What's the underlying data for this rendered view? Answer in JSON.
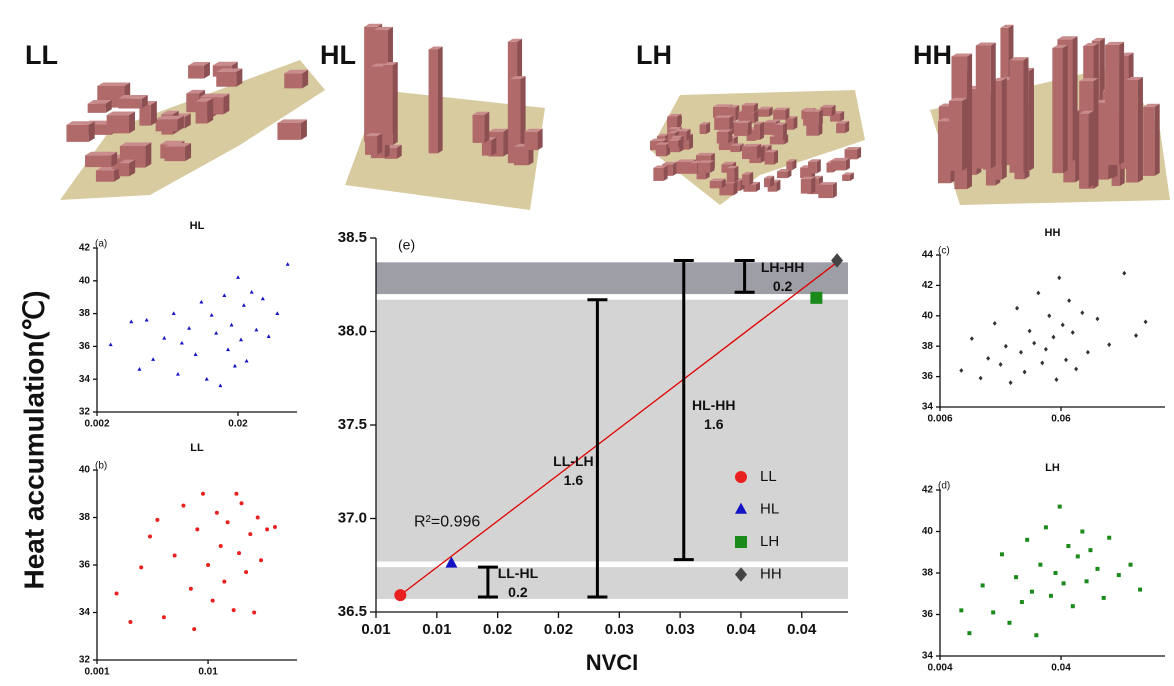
{
  "building_labels": [
    "LL",
    "HL",
    "LH",
    "HH"
  ],
  "chart_data": [
    {
      "type": "scatter",
      "panel_label": "(e)",
      "xlabel": "NVCI",
      "ylabel": "Heat accumulation(℃)",
      "xlim": [
        0.005,
        0.0438
      ],
      "ylim": [
        36.5,
        38.5
      ],
      "xticks": [
        {
          "value": 0.005,
          "label": "0.01"
        },
        {
          "value": 0.01,
          "label": "0.01"
        },
        {
          "value": 0.015,
          "label": "0.02"
        },
        {
          "value": 0.02,
          "label": "0.02"
        },
        {
          "value": 0.025,
          "label": "0.03"
        },
        {
          "value": 0.03,
          "label": "0.03"
        },
        {
          "value": 0.035,
          "label": "0.04"
        },
        {
          "value": 0.04,
          "label": "0.04"
        }
      ],
      "yticks": [
        36.5,
        {
          "value": 37,
          "label": "37.0"
        },
        37.5,
        {
          "value": 38,
          "label": "38.0"
        },
        38.5
      ],
      "bands": [
        {
          "color": "#d4d4d4",
          "range": [
            36.57,
            36.74
          ]
        },
        {
          "color": "#d4d4d4",
          "range": [
            36.77,
            38.17
          ]
        },
        {
          "color": "#9e9ea6",
          "range": [
            38.2,
            38.37
          ]
        }
      ],
      "series": [
        {
          "name": "LL",
          "color": "#e8201f",
          "marker": "circle",
          "x": [
            0.007
          ],
          "values": [
            36.59
          ]
        },
        {
          "name": "HL",
          "color": "#1414c4",
          "marker": "triangle",
          "x": [
            0.0112
          ],
          "values": [
            36.76
          ]
        },
        {
          "name": "LH",
          "color": "#1a8a1a",
          "marker": "square",
          "x": [
            0.0412
          ],
          "values": [
            38.18
          ]
        },
        {
          "name": "HH",
          "color": "#444444",
          "marker": "diamond",
          "x": [
            0.0429
          ],
          "values": [
            38.38
          ]
        }
      ],
      "fit": {
        "color": "#e00000",
        "x": [
          0.007,
          0.0429
        ],
        "values": [
          36.59,
          38.37
        ]
      },
      "intervals": [
        {
          "label": "LL-HL",
          "diff": 0.2,
          "x": 0.0142,
          "low": 36.58,
          "high": 36.74
        },
        {
          "label": "LL-LH",
          "diff": 1.6,
          "x": 0.0232,
          "low": 36.58,
          "high": 38.17
        },
        {
          "label": "HL-HH",
          "diff": 1.6,
          "x": 0.0303,
          "low": 36.78,
          "high": 38.38
        },
        {
          "label": "LH-HH",
          "diff": 0.2,
          "x": 0.0353,
          "low": 38.21,
          "high": 38.38
        }
      ],
      "annotation": "R²=0.996"
    },
    {
      "type": "scatter",
      "panel_label": "(a)",
      "title": "HL",
      "xscale": "log",
      "xlim": [
        0.002,
        0.0524
      ],
      "ylim": [
        32,
        42
      ],
      "xticks": [
        0.002,
        0.02
      ],
      "yticks": [
        32,
        34,
        36,
        38,
        40,
        42
      ],
      "series": [
        {
          "color": "#1414c4",
          "marker": "triangle",
          "x": [
            0.0025,
            0.0035,
            0.004,
            0.0045,
            0.005,
            0.006,
            0.007,
            0.0075,
            0.008,
            0.009,
            0.01,
            0.011,
            0.012,
            0.013,
            0.014,
            0.015,
            0.016,
            0.017,
            0.018,
            0.019,
            0.02,
            0.021,
            0.022,
            0.023,
            0.025,
            0.027,
            0.03,
            0.033,
            0.038,
            0.045
          ],
          "values": [
            36.1,
            37.5,
            34.6,
            37.6,
            35.2,
            36.5,
            38.0,
            34.3,
            36.2,
            37.1,
            35.5,
            38.7,
            34.0,
            37.9,
            36.8,
            33.6,
            39.1,
            35.8,
            37.3,
            34.8,
            40.2,
            36.4,
            38.5,
            35.1,
            39.3,
            37.0,
            38.9,
            36.6,
            38.0,
            41.0
          ]
        }
      ]
    },
    {
      "type": "scatter",
      "panel_label": "(b)",
      "title": "LL",
      "xscale": "log",
      "xlim": [
        0.001,
        0.0632
      ],
      "ylim": [
        32,
        40
      ],
      "xticks": [
        0.001,
        0.01
      ],
      "yticks": [
        32,
        34,
        36,
        38,
        40
      ],
      "series": [
        {
          "color": "#e8201f",
          "marker": "circle",
          "x": [
            0.0015,
            0.002,
            0.0025,
            0.003,
            0.0035,
            0.004,
            0.005,
            0.006,
            0.007,
            0.0075,
            0.008,
            0.009,
            0.01,
            0.011,
            0.012,
            0.013,
            0.014,
            0.015,
            0.017,
            0.018,
            0.019,
            0.02,
            0.022,
            0.024,
            0.026,
            0.028,
            0.03,
            0.034,
            0.04
          ],
          "values": [
            34.8,
            33.6,
            35.9,
            37.2,
            37.9,
            33.8,
            36.4,
            38.5,
            35.0,
            33.3,
            37.5,
            39.0,
            36.0,
            34.5,
            38.2,
            36.8,
            35.3,
            37.8,
            34.1,
            39.0,
            36.5,
            38.6,
            35.7,
            37.3,
            34.0,
            38.0,
            36.2,
            37.5,
            37.6
          ]
        }
      ]
    },
    {
      "type": "scatter",
      "panel_label": "(c)",
      "title": "HH",
      "xscale": "log",
      "xlim": [
        0.006,
        0.434
      ],
      "ylim": [
        34,
        44
      ],
      "xticks": [
        0.006,
        0.06
      ],
      "yticks": [
        34,
        36,
        38,
        40,
        42,
        44
      ],
      "series": [
        {
          "color": "#333333",
          "marker": "diamond",
          "x": [
            0.009,
            0.011,
            0.013,
            0.015,
            0.017,
            0.019,
            0.021,
            0.023,
            0.026,
            0.028,
            0.03,
            0.033,
            0.036,
            0.039,
            0.042,
            0.045,
            0.048,
            0.052,
            0.055,
            0.058,
            0.062,
            0.066,
            0.07,
            0.075,
            0.08,
            0.09,
            0.1,
            0.12,
            0.15,
            0.2,
            0.25,
            0.3
          ],
          "values": [
            36.4,
            38.5,
            35.9,
            37.2,
            39.5,
            36.8,
            38.0,
            35.6,
            40.5,
            37.6,
            36.3,
            39.0,
            38.2,
            41.5,
            36.9,
            37.8,
            40.0,
            38.6,
            35.8,
            42.5,
            39.4,
            37.1,
            41.0,
            38.9,
            36.5,
            40.2,
            37.6,
            39.8,
            38.1,
            42.8,
            38.7,
            39.6
          ]
        }
      ]
    },
    {
      "type": "scatter",
      "panel_label": "(d)",
      "title": "LH",
      "xscale": "log",
      "xlim": [
        0.004,
        0.289
      ],
      "ylim": [
        34,
        42
      ],
      "xticks": [
        0.004,
        0.04
      ],
      "yticks": [
        34,
        36,
        38,
        40,
        42
      ],
      "series": [
        {
          "color": "#1a8a1a",
          "marker": "square",
          "x": [
            0.006,
            0.007,
            0.009,
            0.011,
            0.013,
            0.015,
            0.017,
            0.019,
            0.021,
            0.023,
            0.025,
            0.027,
            0.03,
            0.033,
            0.036,
            0.039,
            0.042,
            0.046,
            0.05,
            0.055,
            0.06,
            0.065,
            0.07,
            0.08,
            0.09,
            0.1,
            0.12,
            0.15,
            0.18
          ],
          "values": [
            36.2,
            35.1,
            37.4,
            36.1,
            38.9,
            35.6,
            37.8,
            36.6,
            39.6,
            37.1,
            35.0,
            38.4,
            40.2,
            36.9,
            38.0,
            41.2,
            37.5,
            39.3,
            36.4,
            38.8,
            40.0,
            37.6,
            39.1,
            38.2,
            36.8,
            39.7,
            37.9,
            38.4,
            37.2
          ]
        }
      ]
    }
  ]
}
